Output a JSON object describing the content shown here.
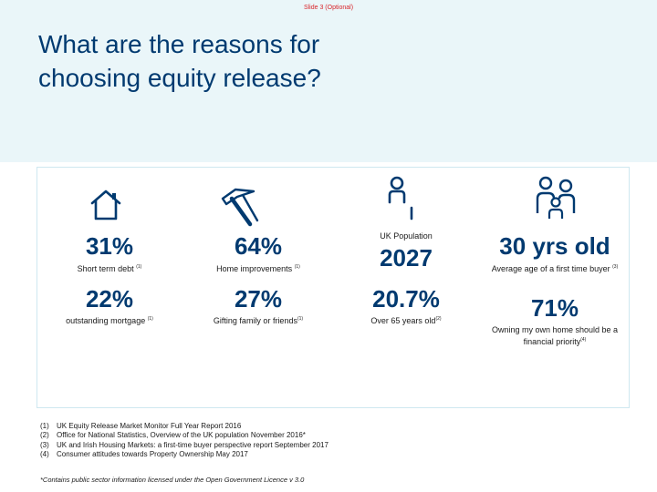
{
  "slide_label": "Slide 3 (Optional)",
  "title": "What are the reasons for choosing equity release?",
  "stats": {
    "short_term_debt": {
      "value": "31%",
      "label": "Short term debt",
      "ref": "(1)"
    },
    "outstanding_mortgage": {
      "value": "22%",
      "label": "outstanding mortgage",
      "ref": "(1)"
    },
    "home_improvements": {
      "value": "64%",
      "label": "Home improvements",
      "ref": "(1)"
    },
    "gifting": {
      "value": "27%",
      "label": "Gifting family or friends",
      "ref": "(1)"
    },
    "uk_population": {
      "caption": "UK Population",
      "value": "2027"
    },
    "over_65": {
      "value": "20.7%",
      "label": "Over 65 years old",
      "ref": "(2)"
    },
    "first_time_buyer": {
      "value": "30 yrs old",
      "label": "Average age of a first time buyer",
      "ref": "(3)"
    },
    "own_home_priority": {
      "value": "71%",
      "label": "Owning my own home should be a financial priority",
      "ref": "(4)"
    }
  },
  "footnotes": [
    {
      "num": "(1)",
      "text": "UK Equity Release Market Monitor Full Year Report 2016"
    },
    {
      "num": "(2)",
      "text": "Office for National Statistics, Overview of the UK population November 2016*"
    },
    {
      "num": "(3)",
      "text": "UK and Irish Housing Markets: a first-time buyer perspective report September 2017"
    },
    {
      "num": "(4)",
      "text": "Consumer attitudes towards Property Ownership May 2017"
    }
  ],
  "licence": "*Contains public sector information licensed under the Open Government Licence v 3.0",
  "colors": {
    "navy": "#003a70",
    "band": "#eaf6f9",
    "accent_red": "#d9262c"
  }
}
